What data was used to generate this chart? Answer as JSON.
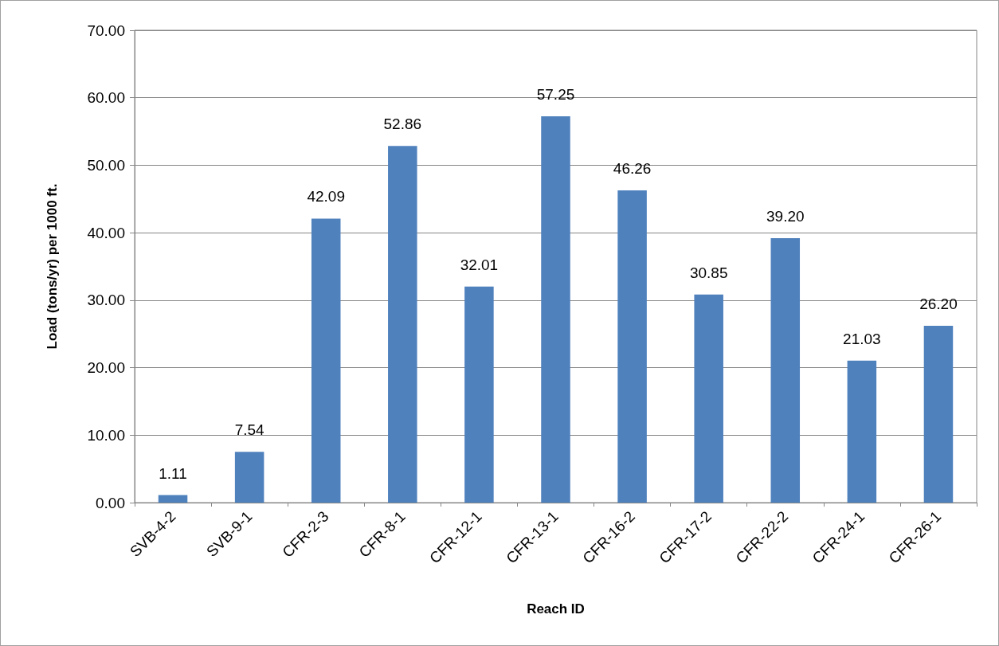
{
  "chart_data": {
    "type": "bar",
    "categories": [
      "SVB-4-2",
      "SVB-9-1",
      "CFR-2-3",
      "CFR-8-1",
      "CFR-12-1",
      "CFR-13-1",
      "CFR-16-2",
      "CFR-17-2",
      "CFR-22-2",
      "CFR-24-1",
      "CFR-26-1"
    ],
    "values": [
      1.11,
      7.54,
      42.09,
      52.86,
      32.01,
      57.25,
      46.26,
      30.85,
      39.2,
      21.03,
      26.2
    ],
    "value_labels": [
      "1.11",
      "7.54",
      "42.09",
      "52.86",
      "32.01",
      "57.25",
      "46.26",
      "30.85",
      "39.20",
      "21.03",
      "26.20"
    ],
    "color": "#4f81bd",
    "xlabel": "Reach ID",
    "ylabel": "Load (tons/yr) per 1000 ft.",
    "ylim": [
      0,
      70
    ],
    "yticks": [
      {
        "value": 0,
        "label": "0.00"
      },
      {
        "value": 10,
        "label": "10.00"
      },
      {
        "value": 20,
        "label": "20.00"
      },
      {
        "value": 30,
        "label": "30.00"
      },
      {
        "value": 40,
        "label": "40.00"
      },
      {
        "value": 50,
        "label": "50.00"
      },
      {
        "value": 60,
        "label": "60.00"
      },
      {
        "value": 70,
        "label": "70.00"
      }
    ],
    "grid": "y"
  }
}
